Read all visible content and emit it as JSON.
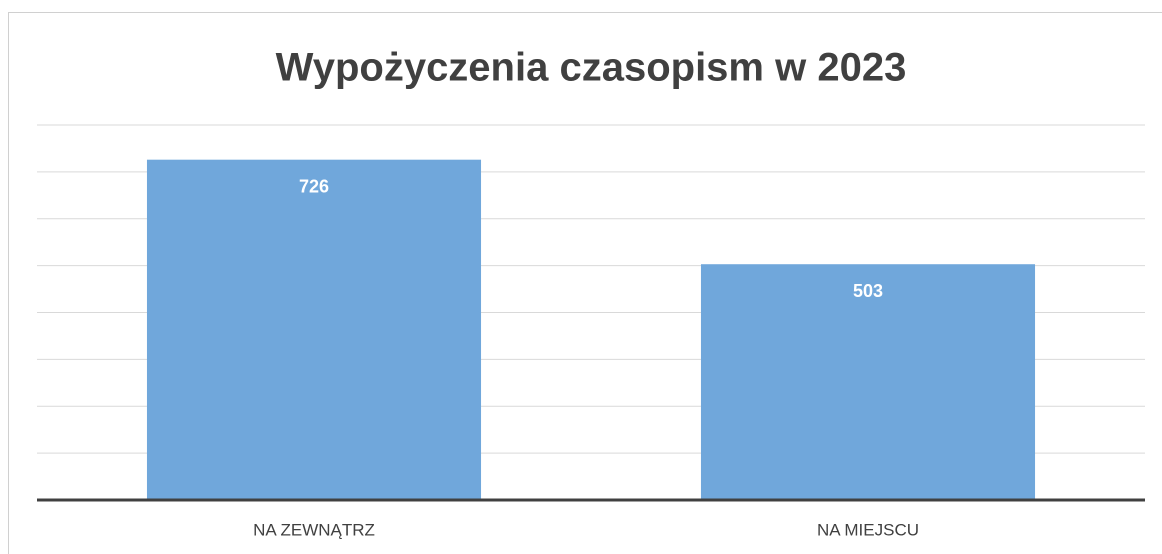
{
  "chart_data": {
    "type": "bar",
    "title": "Wypożyczenia czasopism w 2023",
    "categories": [
      "NA ZEWNĄTRZ",
      "NA MIEJSCU"
    ],
    "values": [
      726,
      503
    ],
    "color": "#70a7db",
    "ylim": [
      0,
      800
    ],
    "yticks": [
      0,
      100,
      200,
      300,
      400,
      500,
      600,
      700,
      800
    ],
    "grid": true
  }
}
